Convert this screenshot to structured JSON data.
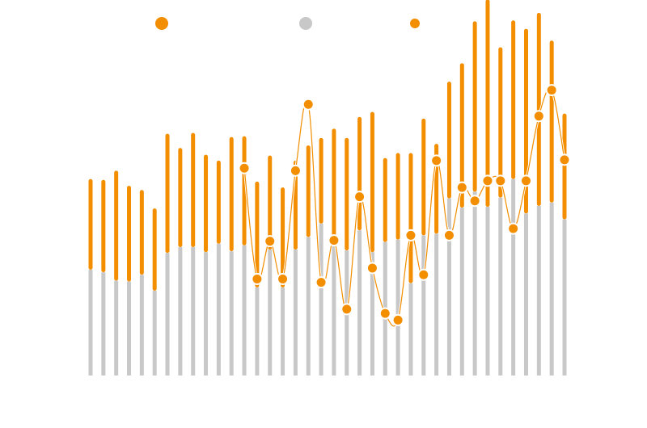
{
  "colors": {
    "orange": "#f28e00",
    "gray": "#c8c8c8",
    "marker_stroke": "#ffffff",
    "background": "#ffffff"
  },
  "legend": {
    "placement": "top",
    "items": [
      {
        "name": "",
        "color": "#f28e00",
        "shape": "dot-large"
      },
      {
        "name": "",
        "color": "#c8c8c8",
        "shape": "dot-large"
      },
      {
        "name": "",
        "color": "#f28e00",
        "shape": "dot-small"
      }
    ]
  },
  "chart_data": {
    "type": "bar",
    "title": "",
    "xlabel": "",
    "ylabel": "",
    "ylim": [
      0,
      380
    ],
    "grid": false,
    "axes_visible": false,
    "x": [
      1,
      2,
      3,
      4,
      5,
      6,
      7,
      8,
      9,
      10,
      11,
      12,
      13,
      14,
      15,
      16,
      17,
      18,
      19,
      20,
      21,
      22,
      23,
      24,
      25,
      26,
      27,
      28,
      29,
      30,
      31,
      32,
      33,
      34,
      35,
      36,
      37,
      38
    ],
    "series": [
      {
        "name": "",
        "kind": "stacked-bar-base",
        "values": [
          126,
          123,
          113,
          112,
          120,
          101,
          146,
          153,
          153,
          147,
          157,
          148,
          155,
          105,
          150,
          105,
          150,
          165,
          181,
          159,
          149,
          173,
          147,
          159,
          162,
          110,
          167,
          169,
          211,
          200,
          219,
          201,
          212,
          234,
          193,
          202,
          206,
          186
        ]
      },
      {
        "name": "",
        "kind": "stacked-bar-top",
        "values": [
          108,
          110,
          131,
          114,
          101,
          98,
          142,
          118,
          136,
          116,
          99,
          136,
          130,
          126,
          112,
          119,
          106,
          109,
          102,
          135,
          134,
          135,
          167,
          100,
          103,
          155,
          139,
          107,
          139,
          172,
          203,
          247,
          179,
          189,
          220,
          230,
          193,
          126
        ]
      },
      {
        "name": "",
        "kind": "dot-line",
        "values": [
          null,
          null,
          null,
          null,
          null,
          null,
          null,
          null,
          null,
          null,
          null,
          null,
          247,
          115,
          160,
          115,
          244,
          323,
          111,
          161,
          79,
          213,
          128,
          74,
          66,
          167,
          120,
          256,
          167,
          224,
          208,
          232,
          232,
          175,
          232,
          309,
          340,
          257
        ]
      }
    ]
  }
}
